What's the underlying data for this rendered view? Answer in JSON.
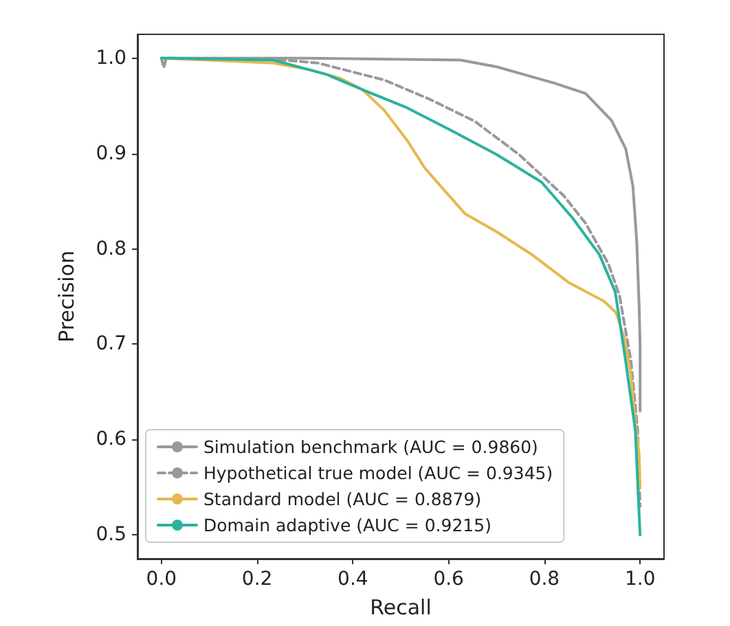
{
  "chart_data": {
    "type": "line",
    "xlabel": "Recall",
    "ylabel": "Precision",
    "xlim": [
      -0.05,
      1.05
    ],
    "ylim": [
      0.475,
      1.025
    ],
    "xticks": [
      {
        "value": 0,
        "label": "0.0"
      },
      {
        "value": 0.2,
        "label": "0.2"
      },
      {
        "value": 0.4,
        "label": "0.4"
      },
      {
        "value": 0.6,
        "label": "0.6"
      },
      {
        "value": 0.8,
        "label": "0.8"
      },
      {
        "value": 1,
        "label": "1.0"
      }
    ],
    "yticks": [
      {
        "value": 0.5,
        "label": "0.5"
      },
      {
        "value": 0.6,
        "label": "0.6"
      },
      {
        "value": 0.7,
        "label": "0.7"
      },
      {
        "value": 0.8,
        "label": "0.8"
      },
      {
        "value": 0.9,
        "label": "0.9"
      },
      {
        "value": 1,
        "label": "1.0"
      }
    ],
    "grid": false,
    "legend": "bottom left",
    "marker": "none",
    "series": [
      {
        "name": "Simulation benchmark (AUC = 0.9860)",
        "color": "#999999",
        "line_style": "solid",
        "x": [
          0,
          0.3,
          0.625,
          0.7,
          0.82,
          0.886,
          0.94,
          0.97,
          0.985,
          0.993,
          0.998,
          1.0,
          1.0
        ],
        "values": [
          1.0,
          1.0,
          0.998,
          0.991,
          0.974,
          0.963,
          0.935,
          0.905,
          0.866,
          0.808,
          0.74,
          0.7,
          0.63
        ]
      },
      {
        "name": "Hypothetical true model (AUC = 0.9345)",
        "color": "#999999",
        "line_style": "dashed",
        "x": [
          0,
          0.005,
          0.01,
          0.233,
          0.326,
          0.466,
          0.56,
          0.654,
          0.747,
          0.84,
          0.886,
          0.934,
          0.957,
          0.981,
          0.995,
          1.0
        ],
        "values": [
          1.0,
          0.99,
          1.0,
          0.999,
          0.995,
          0.977,
          0.957,
          0.934,
          0.899,
          0.856,
          0.827,
          0.784,
          0.751,
          0.682,
          0.61,
          0.53
        ]
      },
      {
        "name": "Standard model (AUC = 0.8879)",
        "color": "#e5b94e",
        "line_style": "solid",
        "x": [
          0,
          0.045,
          0.233,
          0.308,
          0.373,
          0.42,
          0.466,
          0.513,
          0.55,
          0.59,
          0.634,
          0.7,
          0.774,
          0.85,
          0.925,
          0.95,
          0.968,
          0.981,
          0.99,
          0.998,
          1.0
        ],
        "values": [
          1.0,
          0.999,
          0.995,
          0.988,
          0.979,
          0.967,
          0.945,
          0.914,
          0.885,
          0.862,
          0.837,
          0.818,
          0.794,
          0.765,
          0.745,
          0.733,
          0.705,
          0.667,
          0.618,
          0.585,
          0.55
        ]
      },
      {
        "name": "Domain adaptive (AUC = 0.9215)",
        "color": "#2bb29f",
        "line_style": "solid",
        "x": [
          0,
          0.233,
          0.308,
          0.345,
          0.42,
          0.513,
          0.606,
          0.7,
          0.794,
          0.858,
          0.915,
          0.948,
          0.97,
          0.99,
          1.0
        ],
        "values": [
          1.0,
          0.998,
          0.988,
          0.983,
          0.967,
          0.948,
          0.924,
          0.899,
          0.87,
          0.833,
          0.794,
          0.755,
          0.682,
          0.61,
          0.5
        ]
      }
    ]
  }
}
